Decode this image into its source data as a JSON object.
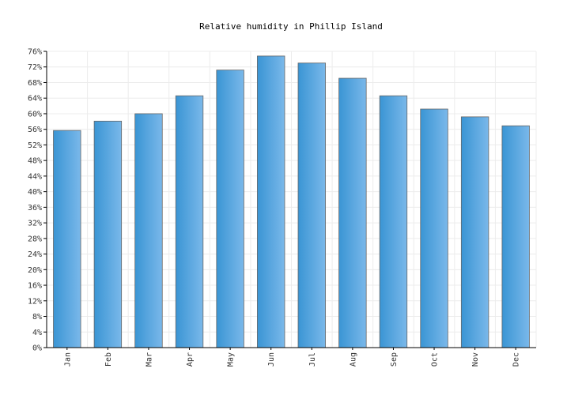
{
  "chart_data": {
    "type": "bar",
    "title": "Relative humidity in Phillip Island",
    "categories": [
      "Jan",
      "Feb",
      "Mar",
      "Apr",
      "May",
      "Jun",
      "Jul",
      "Aug",
      "Sep",
      "Oct",
      "Nov",
      "Dec"
    ],
    "values": [
      55.7,
      58.1,
      60,
      64.6,
      71.2,
      74.8,
      73,
      69.1,
      64.6,
      61.2,
      59.2,
      56.9
    ],
    "ylim": [
      0,
      76
    ],
    "yticks": [
      "0%",
      "4%",
      "8%",
      "12%",
      "16%",
      "20%",
      "24%",
      "28%",
      "32%",
      "36%",
      "40%",
      "44%",
      "48%",
      "52%",
      "56%",
      "60%",
      "64%",
      "68%",
      "72%",
      "76%"
    ],
    "ytick_values": [
      0,
      4,
      8,
      12,
      16,
      20,
      24,
      28,
      32,
      36,
      40,
      44,
      48,
      52,
      56,
      60,
      64,
      68,
      72,
      76
    ],
    "grid": true,
    "colors": {
      "bar_light": "#7ab8ea",
      "bar_dark": "#3a95d4",
      "bar_border": "#666666",
      "grid": "#ececec"
    }
  }
}
